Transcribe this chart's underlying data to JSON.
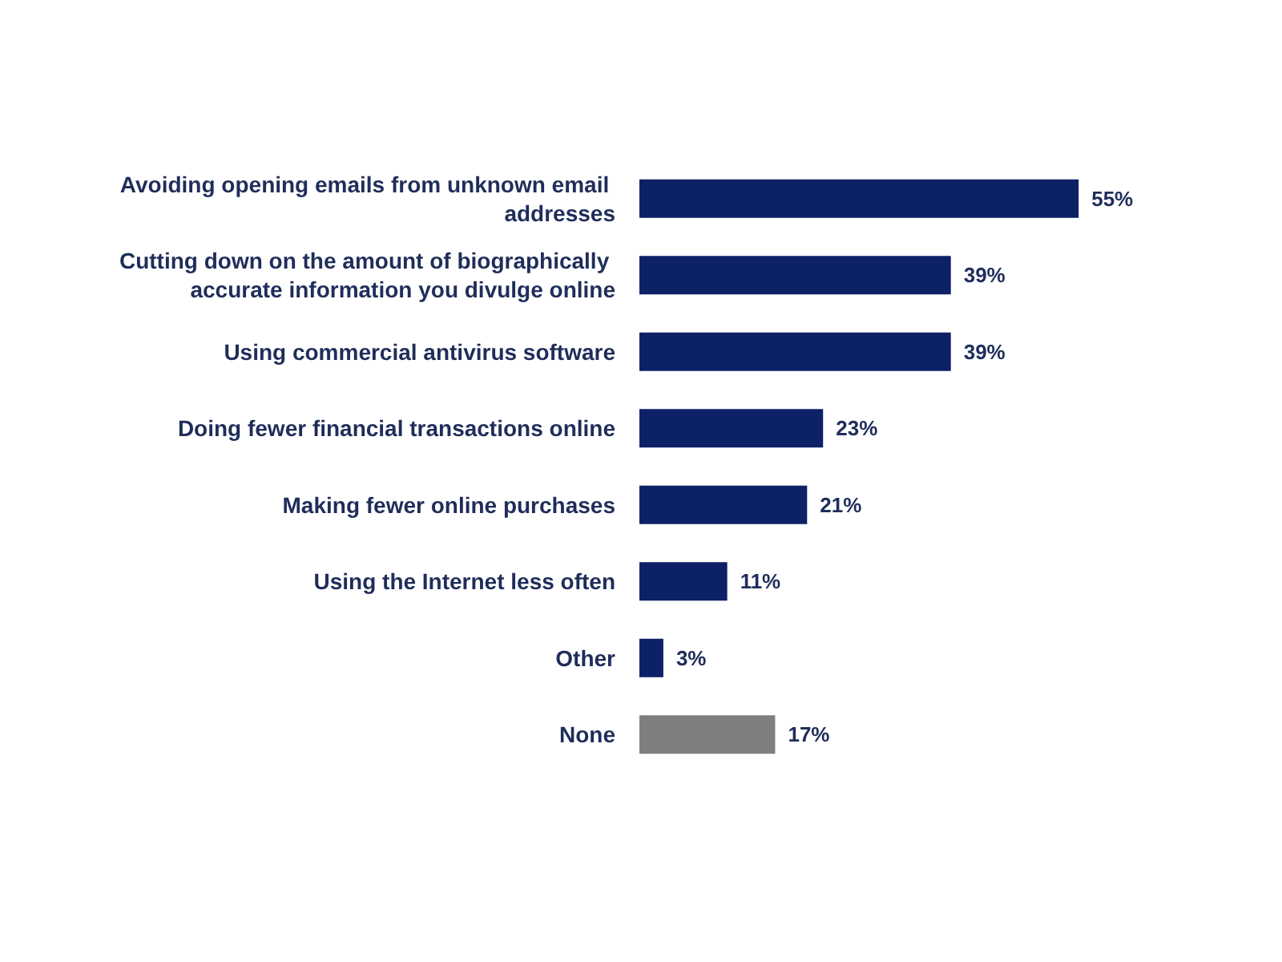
{
  "chart_data": {
    "type": "bar",
    "orientation": "horizontal",
    "categories": [
      "Avoiding opening emails from unknown email addresses",
      "Cutting down on the amount of biographically accurate information you divulge online",
      "Using commercial antivirus software",
      "Doing fewer financial transactions online",
      "Making fewer online purchases",
      "Using the Internet less often",
      "Other",
      "None"
    ],
    "values": [
      55,
      39,
      39,
      23,
      21,
      11,
      3,
      17
    ],
    "colors": [
      "#0d2167",
      "#0d2167",
      "#0d2167",
      "#0d2167",
      "#0d2167",
      "#0d2167",
      "#0d2167",
      "#7f7f7f"
    ],
    "value_labels": [
      "55%",
      "39%",
      "39%",
      "23%",
      "21%",
      "11%",
      "3%",
      "17%"
    ]
  }
}
